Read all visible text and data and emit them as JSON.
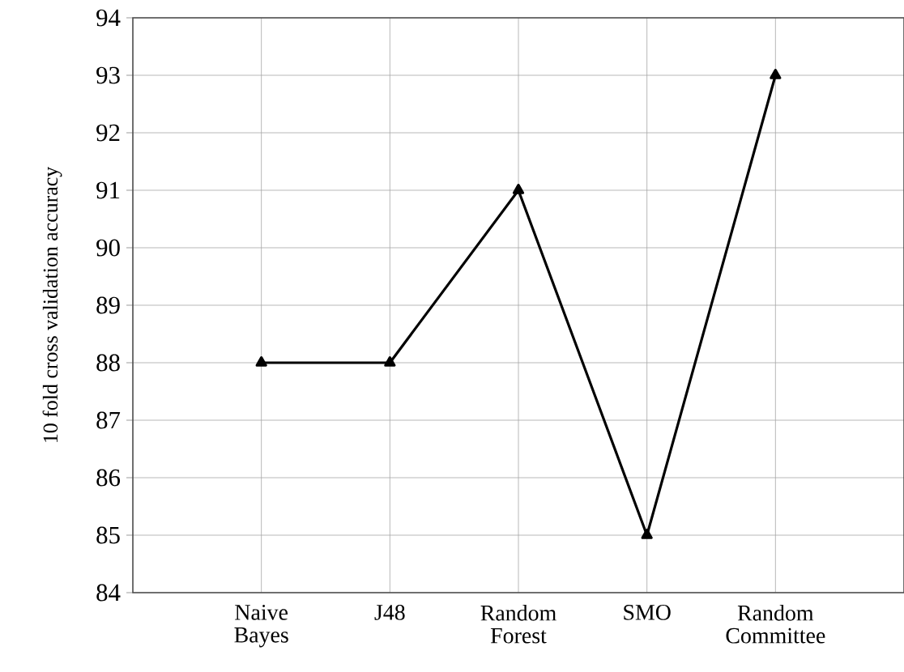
{
  "chart_data": {
    "type": "line",
    "ylabel": "10 fold cross validation accuracy",
    "categories": [
      "Naive Bayes",
      "J48",
      "Random Forest",
      "SMO",
      "Random Committee"
    ],
    "series": [
      {
        "color": "#000000",
        "values": [
          88,
          88,
          91,
          85,
          93
        ]
      }
    ],
    "ylim": [
      84,
      94
    ],
    "yticks": [
      84,
      85,
      86,
      87,
      88,
      89,
      90,
      91,
      92,
      93,
      94
    ],
    "grid": true,
    "marker": "triangle",
    "line_style": "solid"
  }
}
